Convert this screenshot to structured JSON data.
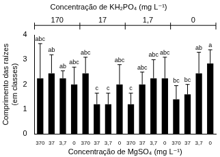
{
  "chart_data": {
    "type": "bar",
    "title": "Concentração de KH₂PO₄ (mg L⁻¹)",
    "groups": [
      "170",
      "17",
      "1,7",
      "0"
    ],
    "x_label": "Concentração de MgSO₄ (mg L⁻¹)",
    "y_label": [
      "Comprimento das raízes",
      "(em classes)"
    ],
    "categories": [
      "370",
      "37",
      "3,7",
      "0",
      "370",
      "37",
      "3,7",
      "0",
      "370",
      "37",
      "3,7",
      "0",
      "370",
      "37",
      "3,7",
      "0"
    ],
    "values": [
      2.25,
      2.45,
      2.25,
      2.0,
      2.45,
      1.2,
      1.2,
      2.0,
      1.2,
      2.0,
      2.25,
      2.25,
      1.4,
      1.6,
      2.45,
      2.85
    ],
    "error": [
      1.4,
      0.75,
      0.3,
      0.7,
      0.65,
      0.45,
      0.45,
      0.8,
      0.45,
      0.5,
      0.75,
      0.85,
      0.55,
      0.4,
      0.85,
      0.55
    ],
    "significance_letters": [
      "abc",
      "ab",
      "ab",
      "abc",
      "abc",
      "c",
      "c",
      "abc",
      "c",
      "abc",
      "abc",
      "abc",
      "bc",
      "bc",
      "ab",
      "a"
    ],
    "color": "#000000",
    "ylim": [
      0,
      4
    ],
    "yticks": [
      0,
      1,
      2,
      3,
      4
    ],
    "grid": false
  }
}
